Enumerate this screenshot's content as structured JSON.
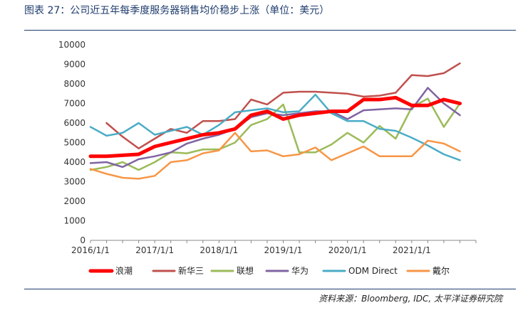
{
  "title": "图表 27：公司近五年每季度服务器销售均价稳步上涨（单位：美元）",
  "source": "资料来源：Bloomberg, IDC, 太平洋证券研究院",
  "chart_data": {
    "type": "line",
    "x": [
      "2016Q1",
      "2016Q2",
      "2016Q3",
      "2016Q4",
      "2017Q1",
      "2017Q2",
      "2017Q3",
      "2017Q4",
      "2018Q1",
      "2018Q2",
      "2018Q3",
      "2018Q4",
      "2019Q1",
      "2019Q2",
      "2019Q3",
      "2019Q4",
      "2020Q1",
      "2020Q2",
      "2020Q3",
      "2020Q4",
      "2021Q1",
      "2021Q2",
      "2021Q3",
      "2021Q4",
      "2022Q1"
    ],
    "x_tick_labels": [
      "2016/1/1",
      "2017/1/1",
      "2018/1/1",
      "2019/1/1",
      "2020/1/1",
      "2021/1/1"
    ],
    "ylim": [
      0,
      10000
    ],
    "y_ticks": [
      0,
      1000,
      2000,
      3000,
      4000,
      5000,
      6000,
      7000,
      8000,
      9000,
      10000
    ],
    "grid": false,
    "legend_position": "bottom",
    "series": [
      {
        "name": "浪潮",
        "color": "#ff0000",
        "width": 5,
        "values": [
          4300,
          4300,
          4350,
          4400,
          4800,
          5000,
          5200,
          5400,
          5500,
          5700,
          6400,
          6600,
          6200,
          6400,
          6500,
          6600,
          6600,
          7200,
          7200,
          7300,
          6900,
          6900,
          7200,
          7000,
          null
        ]
      },
      {
        "name": "新华三",
        "color": "#c0504d",
        "width": 2.5,
        "values": [
          null,
          6000,
          5300,
          4700,
          5200,
          5700,
          5500,
          6100,
          6100,
          6200,
          7200,
          6950,
          7550,
          7600,
          7600,
          7550,
          7500,
          7350,
          7400,
          7550,
          8450,
          8400,
          8550,
          9050,
          null
        ]
      },
      {
        "name": "联想",
        "color": "#9bbb59",
        "width": 2.5,
        "values": [
          3600,
          3750,
          4000,
          3600,
          4000,
          4500,
          4450,
          4650,
          4650,
          5000,
          5900,
          6200,
          6950,
          4500,
          4500,
          4900,
          5500,
          5000,
          5850,
          5200,
          6800,
          7250,
          5800,
          7000,
          null
        ]
      },
      {
        "name": "华为",
        "color": "#8064a2",
        "width": 2.5,
        "values": [
          3950,
          4000,
          3750,
          4150,
          4300,
          4500,
          4950,
          5200,
          5400,
          5700,
          6300,
          6500,
          6400,
          6500,
          6600,
          6600,
          6200,
          6650,
          6700,
          6750,
          6700,
          7800,
          7000,
          6400,
          null
        ]
      },
      {
        "name": "ODM Direct",
        "color": "#4bacc6",
        "width": 2.5,
        "values": [
          5800,
          5350,
          5500,
          6000,
          5400,
          5600,
          5800,
          5400,
          5900,
          6550,
          6650,
          6750,
          6550,
          6600,
          7450,
          6500,
          6100,
          6100,
          5700,
          5600,
          5250,
          4850,
          4400,
          4100,
          null
        ]
      },
      {
        "name": "戴尔",
        "color": "#f79646",
        "width": 2.5,
        "values": [
          3650,
          3400,
          3200,
          3150,
          3300,
          4000,
          4100,
          4450,
          4600,
          5500,
          4550,
          4600,
          4300,
          4400,
          4750,
          4100,
          4450,
          4800,
          4300,
          4300,
          4300,
          5100,
          4950,
          4550,
          null
        ]
      }
    ]
  }
}
